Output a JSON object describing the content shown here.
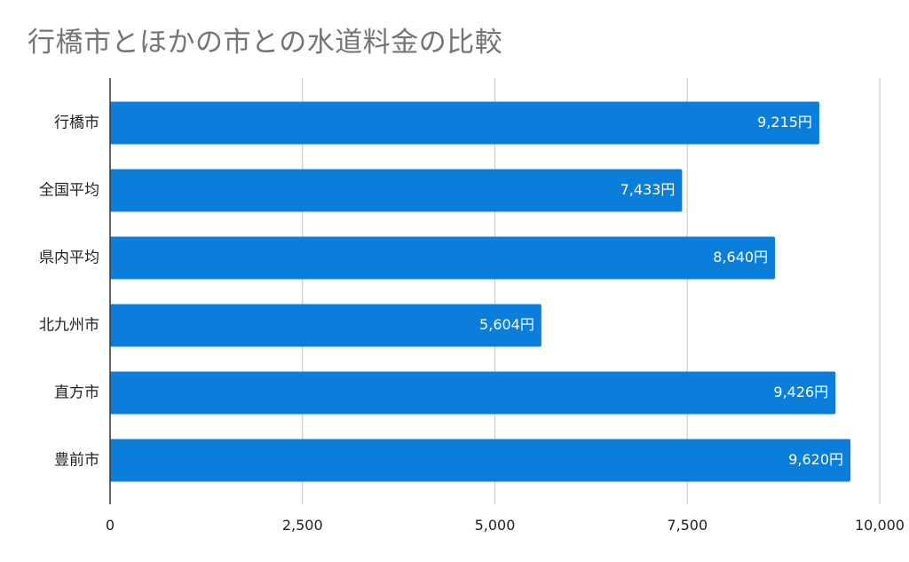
{
  "chart_data": {
    "type": "bar",
    "orientation": "horizontal",
    "title": "行橋市とほかの市との水道料金の比較",
    "categories": [
      "行橋市",
      "全国平均",
      "県内平均",
      "北九州市",
      "直方市",
      "豊前市"
    ],
    "values": [
      9215,
      7433,
      8640,
      5604,
      9426,
      9620
    ],
    "data_labels": [
      "9,215円",
      "7,433円",
      "8,640円",
      "5,604円",
      "9,426円",
      "9,620円"
    ],
    "xlim": [
      0,
      10000
    ],
    "xticks": [
      0,
      2500,
      5000,
      7500,
      10000
    ],
    "xtick_labels": [
      "0",
      "2,500",
      "5,000",
      "7,500",
      "10,000"
    ],
    "xlabel": "",
    "ylabel": "",
    "grid": "vertical",
    "legend": "none",
    "bar_color": "#0b7ddb",
    "grid_color": "#cccccc",
    "axis_color": "#333333",
    "title_color": "#757575",
    "text_color": "#222222"
  }
}
